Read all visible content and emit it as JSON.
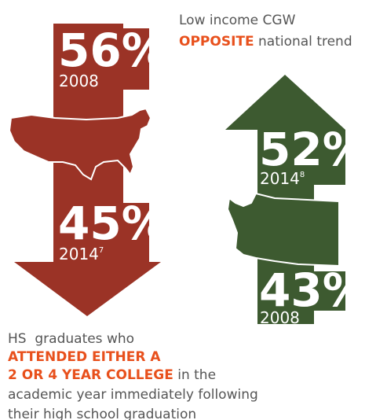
{
  "heading": {
    "line1": "Low income CGW",
    "highlight": "OPPOSITE",
    "rest": " national trend"
  },
  "national": {
    "top": {
      "percent": "56%",
      "year": "2008"
    },
    "bottom": {
      "percent": "45%",
      "year": "2014",
      "note": "7"
    }
  },
  "state": {
    "top": {
      "percent": "52%",
      "year": "2014",
      "note": "8"
    },
    "bottom": {
      "percent": "43%",
      "year": "2008"
    }
  },
  "caption": {
    "line1": "HS  graduates who",
    "highlight1": "ATTENDED EITHER A",
    "highlight2": "2 OR 4 YEAR COLLEGE",
    "rest2": " in the",
    "line4": "academic year immediately following",
    "line5": "their high school graduation"
  }
}
